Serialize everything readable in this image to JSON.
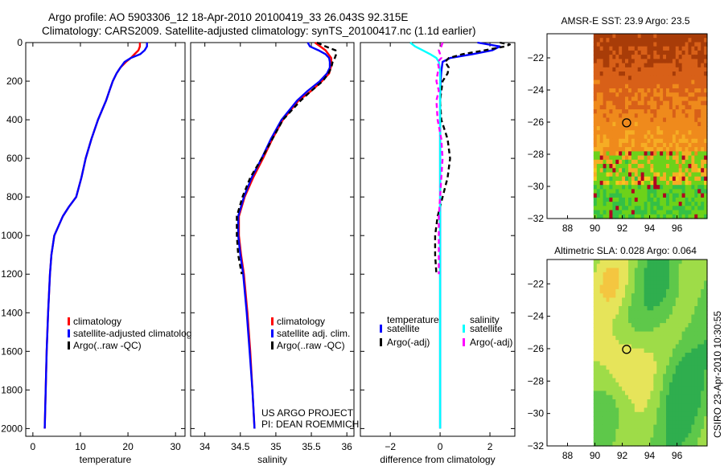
{
  "figure": {
    "title_line1": "Argo profile: AO 5903306_12 18-Apr-2010 20100419_33 26.043S 92.315E",
    "title_line2": "Climatology: CARS2009. Satellite-adjusted climatology: synTS_20100417.nc (1.1d earlier)",
    "side_stamp": "CSIRO 23-Apr-2010 10:30:55",
    "project_line1": "US ARGO PROJECT",
    "project_line2": "PI: DEAN ROEMMICH"
  },
  "colors": {
    "climatology": "#ff0000",
    "satellite": "#0000ff",
    "argo": "#000000",
    "salinity_satellite": "#00ffff",
    "salinity_argo": "#ff00ff",
    "sst_ramp": [
      "#a83c08",
      "#d86018",
      "#ef8a1c",
      "#f6ad24",
      "#f4c81e",
      "#6cd21a",
      "#34c046"
    ],
    "sla_ramp": [
      "#2fae4e",
      "#5ec84a",
      "#9edc48",
      "#e6e45a",
      "#f4c640",
      "#f0a83a"
    ]
  },
  "chart_data": [
    {
      "type": "line",
      "panel": "temperature",
      "xlabel": "temperature",
      "xlim": [
        -1.5,
        32
      ],
      "xticks": [
        0,
        10,
        20,
        30
      ],
      "ylim": [
        0,
        2040
      ],
      "yticks": [
        0,
        200,
        400,
        600,
        800,
        1000,
        1200,
        1400,
        1600,
        1800,
        2000
      ],
      "y_reversed": true,
      "legend": [
        "climatology",
        "satellite-adjusted climatolog",
        "Argo(..raw -QC)"
      ],
      "series": [
        {
          "name": "climatology",
          "color": "#ff0000",
          "dash": "",
          "depth": [
            0,
            20,
            40,
            60,
            80,
            100,
            130,
            160,
            200,
            250,
            300,
            400,
            500,
            600,
            700,
            800,
            850,
            900,
            1000,
            1100,
            1200,
            1400,
            1600,
            1800,
            2000
          ],
          "values": [
            22.5,
            22.5,
            22.2,
            21.4,
            20.6,
            19.6,
            18.4,
            17.6,
            16.8,
            16.1,
            15.4,
            13.7,
            12.3,
            11.1,
            10.2,
            9.1,
            7.6,
            6.3,
            4.5,
            3.9,
            3.6,
            3.2,
            2.9,
            2.7,
            2.5
          ]
        },
        {
          "name": "satellite-adjusted climatology",
          "color": "#0000ff",
          "dash": "",
          "depth": [
            0,
            10,
            20,
            40,
            60,
            80,
            100,
            130,
            160,
            200,
            250,
            300,
            400,
            500,
            600,
            700,
            800,
            850,
            900,
            1000,
            1100,
            1200,
            1400,
            1600,
            1800,
            2000
          ],
          "values": [
            24.0,
            24.0,
            24.0,
            23.5,
            22.6,
            20.6,
            19.3,
            18.4,
            17.6,
            16.8,
            16.1,
            15.4,
            13.7,
            12.3,
            11.1,
            10.2,
            9.1,
            7.6,
            6.3,
            4.5,
            3.9,
            3.6,
            3.2,
            2.9,
            2.7,
            2.5
          ]
        },
        {
          "name": "Argo(..raw -QC)",
          "color": "#000000",
          "dash": "6,4",
          "depth": [],
          "values": []
        }
      ]
    },
    {
      "type": "line",
      "panel": "salinity",
      "xlabel": "salinity",
      "xlim": [
        33.8,
        36.1
      ],
      "xticks": [
        34,
        34.5,
        35,
        35.5,
        36
      ],
      "ylim": [
        0,
        2040
      ],
      "yticks": [
        0,
        200,
        400,
        600,
        800,
        1000,
        1200,
        1400,
        1600,
        1800,
        2000
      ],
      "y_reversed": true,
      "legend": [
        "climatology",
        "satellite adj. clim.",
        "Argo(..raw -QC)"
      ],
      "series": [
        {
          "name": "climatology",
          "color": "#ff0000",
          "dash": "",
          "depth": [
            0,
            40,
            80,
            120,
            160,
            200,
            250,
            300,
            400,
            500,
            600,
            700,
            800,
            900,
            1000,
            1100,
            1200,
            1400,
            1600,
            1800,
            2000
          ],
          "values": [
            35.55,
            35.7,
            35.78,
            35.78,
            35.75,
            35.65,
            35.5,
            35.32,
            35.1,
            34.95,
            34.82,
            34.68,
            34.56,
            34.48,
            34.48,
            34.51,
            34.55,
            34.6,
            34.64,
            34.67,
            34.7
          ]
        },
        {
          "name": "satellite adj. clim.",
          "color": "#0000ff",
          "dash": "",
          "depth": [
            0,
            20,
            40,
            60,
            80,
            100,
            130,
            160,
            200,
            250,
            300,
            400,
            500,
            600,
            700,
            800,
            900,
            1000,
            1100,
            1200,
            1400,
            1600,
            1800,
            2000
          ],
          "values": [
            35.45,
            35.48,
            35.6,
            35.7,
            35.75,
            35.76,
            35.76,
            35.72,
            35.62,
            35.45,
            35.3,
            35.08,
            34.93,
            34.8,
            34.66,
            34.55,
            34.47,
            34.47,
            34.5,
            34.54,
            34.59,
            34.63,
            34.67,
            34.7
          ]
        },
        {
          "name": "Argo(..raw -QC)",
          "color": "#000000",
          "dash": "6,4",
          "depth": [
            0,
            20,
            40,
            60,
            80,
            100,
            130,
            160,
            200,
            250,
            300,
            400,
            500,
            600,
            700,
            800,
            900,
            1000,
            1100,
            1200
          ],
          "values": [
            35.58,
            35.7,
            35.84,
            35.85,
            35.83,
            35.8,
            35.78,
            35.74,
            35.66,
            35.5,
            35.35,
            35.1,
            34.95,
            34.8,
            34.64,
            34.53,
            34.45,
            34.45,
            34.47,
            34.52
          ]
        }
      ]
    },
    {
      "type": "line",
      "panel": "difference",
      "xlabel": "difference from climatology",
      "xlim": [
        -3.2,
        3.0
      ],
      "xticks": [
        -2,
        0,
        2
      ],
      "ylim": [
        0,
        2040
      ],
      "yticks": [
        0,
        200,
        400,
        600,
        800,
        1000,
        1200,
        1400,
        1600,
        1800,
        2000
      ],
      "y_reversed": true,
      "legend_left_heading": "temperature",
      "legend_right_heading": "salinity",
      "legend": [
        "satellite",
        "Argo(-adj)",
        "satellite",
        "Argo(-adj)"
      ],
      "series": [
        {
          "name": "temperature satellite",
          "color": "#0000ff",
          "dash": "",
          "depth": [
            0,
            20,
            40,
            60,
            80,
            100,
            150,
            200,
            300,
            400,
            500,
            600,
            800,
            1000,
            1200,
            1400,
            1600,
            1800,
            2000
          ],
          "values": [
            1.5,
            2.4,
            2.1,
            1.3,
            0.4,
            0.1,
            0.05,
            0.02,
            0.0,
            0.0,
            0.0,
            0.0,
            0.0,
            0.0,
            0.0,
            0.0,
            0.0,
            0.0,
            0.0
          ]
        },
        {
          "name": "temperature Argo(-adj)",
          "color": "#000000",
          "dash": "6,4",
          "depth": [
            0,
            10,
            20,
            40,
            60,
            80,
            100,
            130,
            160,
            200,
            300,
            400,
            500,
            600,
            700,
            800,
            900,
            1000,
            1100,
            1200
          ],
          "values": [
            2.4,
            2.8,
            2.6,
            1.8,
            0.9,
            0.35,
            0.2,
            0.35,
            0.3,
            0.1,
            0.0,
            0.05,
            0.3,
            0.4,
            0.3,
            0.1,
            -0.1,
            -0.2,
            -0.2,
            -0.15
          ]
        },
        {
          "name": "salinity satellite",
          "color": "#00ffff",
          "dash": "",
          "depth": [
            0,
            20,
            40,
            60,
            80,
            100,
            150,
            200,
            300,
            400,
            500,
            600,
            800,
            1000,
            1200,
            1400,
            1600,
            1800,
            2000
          ],
          "values": [
            -1.2,
            -1.0,
            -0.7,
            -0.4,
            -0.15,
            -0.05,
            0.0,
            0.0,
            0.0,
            0.0,
            0.0,
            0.0,
            0.0,
            0.0,
            0.0,
            0.0,
            0.0,
            0.0,
            0.0
          ]
        },
        {
          "name": "salinity Argo(-adj)",
          "color": "#ff00ff",
          "dash": "6,4",
          "depth": [
            0,
            20,
            40,
            60,
            80,
            100,
            130,
            160,
            200,
            250,
            300,
            400,
            500,
            600,
            700,
            800,
            900,
            1000,
            1100,
            1200
          ],
          "values": [
            0.1,
            0.05,
            -0.05,
            0.0,
            0.05,
            -0.1,
            -0.05,
            -0.1,
            -0.15,
            -0.05,
            -0.15,
            -0.1,
            0.05,
            0.1,
            0.05,
            0.0,
            -0.05,
            -0.05,
            -0.05,
            -0.05
          ]
        }
      ]
    },
    {
      "type": "heatmap",
      "panel": "sst_map",
      "title": "AMSR-E SST: 23.9 Argo: 23.5",
      "xlim": [
        86.5,
        98.2
      ],
      "ylim": [
        -32,
        -20.5
      ],
      "xticks": [
        88,
        90,
        92,
        94,
        96
      ],
      "yticks": [
        -22,
        -24,
        -26,
        -28,
        -30,
        -32
      ],
      "profile_marker": {
        "lon": 92.315,
        "lat": -26.043
      }
    },
    {
      "type": "heatmap",
      "panel": "sla_map",
      "title": "Altimetric SLA: 0.028 Argo: 0.064",
      "xlim": [
        86.5,
        98.2
      ],
      "ylim": [
        -32,
        -20.5
      ],
      "xticks": [
        88,
        90,
        92,
        94,
        96
      ],
      "yticks": [
        -22,
        -24,
        -26,
        -28,
        -30,
        -32
      ],
      "profile_marker": {
        "lon": 92.315,
        "lat": -26.043
      }
    }
  ]
}
